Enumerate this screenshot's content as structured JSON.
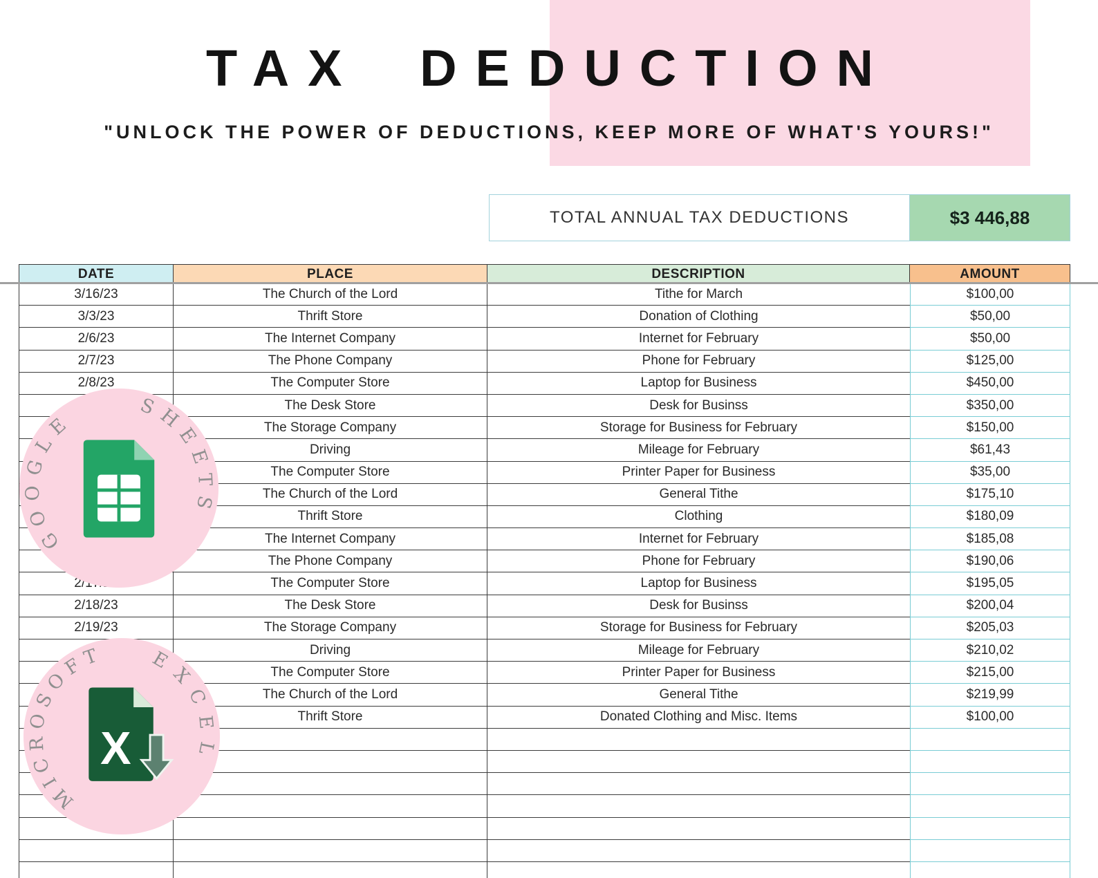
{
  "page": {
    "title": "TAX DEDUCTION",
    "tagline": "\"UNLOCK THE POWER OF DEDUCTIONS, KEEP MORE OF WHAT'S YOURS!\""
  },
  "summary": {
    "label": "TOTAL ANNUAL TAX DEDUCTIONS",
    "value": "$3 446,88"
  },
  "table": {
    "headers": {
      "date": "DATE",
      "place": "PLACE",
      "description": "DESCRIPTION",
      "amount": "AMOUNT"
    },
    "rows": [
      {
        "date": "3/16/23",
        "place": "The Church of the Lord",
        "description": "Tithe for March",
        "amount": "$100,00"
      },
      {
        "date": "3/3/23",
        "place": "Thrift Store",
        "description": "Donation of Clothing",
        "amount": "$50,00"
      },
      {
        "date": "2/6/23",
        "place": "The Internet Company",
        "description": "Internet for February",
        "amount": "$50,00"
      },
      {
        "date": "2/7/23",
        "place": "The Phone Company",
        "description": "Phone for February",
        "amount": "$125,00"
      },
      {
        "date": "2/8/23",
        "place": "The Computer Store",
        "description": "Laptop for Business",
        "amount": "$450,00"
      },
      {
        "date": "",
        "place": "The Desk Store",
        "description": "Desk for Businss",
        "amount": "$350,00"
      },
      {
        "date": "",
        "place": "The Storage Company",
        "description": "Storage for Business for February",
        "amount": "$150,00"
      },
      {
        "date": "",
        "place": "Driving",
        "description": "Mileage for February",
        "amount": "$61,43"
      },
      {
        "date": "",
        "place": "The Computer Store",
        "description": "Printer Paper for Business",
        "amount": "$35,00"
      },
      {
        "date": "",
        "place": "The Church of the Lord",
        "description": "General Tithe",
        "amount": "$175,10"
      },
      {
        "date": "",
        "place": "Thrift Store",
        "description": "Clothing",
        "amount": "$180,09"
      },
      {
        "date": "",
        "place": "The Internet Company",
        "description": "Internet for February",
        "amount": "$185,08"
      },
      {
        "date": "",
        "place": "The Phone Company",
        "description": "Phone for February",
        "amount": "$190,06"
      },
      {
        "date": "2/17/23",
        "place": "The Computer Store",
        "description": "Laptop for Business",
        "amount": "$195,05"
      },
      {
        "date": "2/18/23",
        "place": "The Desk Store",
        "description": "Desk for Businss",
        "amount": "$200,04"
      },
      {
        "date": "2/19/23",
        "place": "The Storage Company",
        "description": "Storage for Business for February",
        "amount": "$205,03"
      },
      {
        "date": "",
        "place": "Driving",
        "description": "Mileage for February",
        "amount": "$210,02"
      },
      {
        "date": "",
        "place": "The Computer Store",
        "description": "Printer Paper for Business",
        "amount": "$215,00"
      },
      {
        "date": "",
        "place": "The Church of the Lord",
        "description": "General Tithe",
        "amount": "$219,99"
      },
      {
        "date": "",
        "place": "Thrift Store",
        "description": "Donated Clothing and Misc. Items",
        "amount": "$100,00"
      }
    ],
    "empty_row_count": 7
  },
  "badges": {
    "google_sheets": {
      "word1": "GOOGLE",
      "word2": "SHEETS"
    },
    "microsoft_excel": {
      "word1": "MICROSOFT",
      "word2": "EXCEL",
      "icon_letter": "X"
    }
  },
  "colors": {
    "accent_pink": "#fbd9e4",
    "header_date": "#cfeef2",
    "header_place": "#fcd9b5",
    "header_description": "#d7ecd9",
    "header_amount": "#f8c08d",
    "total_green": "#a6d8b0",
    "teal_border": "#79ccd4",
    "dark_border": "#3b3b3b",
    "sheets_green": "#23a566",
    "excel_green": "#185c37"
  }
}
